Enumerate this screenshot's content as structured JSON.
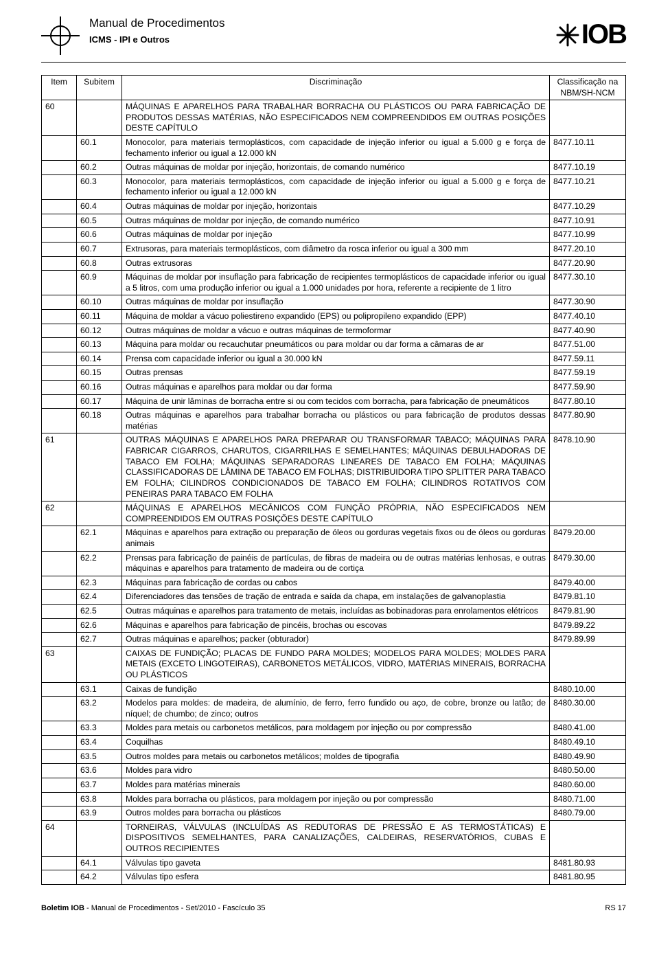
{
  "header": {
    "title": "Manual de Procedimentos",
    "subtitle": "ICMS - IPI e Outros",
    "logo_text": "IOB"
  },
  "table": {
    "head": {
      "item": "Item",
      "subitem": "Subitem",
      "disc": "Discriminação",
      "class": "Classificação na NBM/SH-NCM"
    },
    "rows": [
      {
        "item": "60",
        "sub": "",
        "disc": "MÁQUINAS E APARELHOS PARA TRABALHAR BORRACHA OU PLÁSTICOS OU PARA FABRICAÇÃO DE PRODUTOS DESSAS MATÉRIAS, NÃO ESPECIFICADOS NEM COMPREENDIDOS EM OUTRAS POSIÇÕES DESTE CAPÍTULO",
        "cls": ""
      },
      {
        "item": "",
        "sub": "60.1",
        "disc": "Monocolor, para materiais termoplásticos, com capacidade de injeção inferior ou igual a 5.000 g e força de fechamento inferior ou igual a 12.000 kN",
        "cls": "8477.10.11"
      },
      {
        "item": "",
        "sub": "60.2",
        "disc": "Outras máquinas de moldar por injeção, horizontais, de comando numérico",
        "cls": "8477.10.19"
      },
      {
        "item": "",
        "sub": "60.3",
        "disc": "Monocolor, para materiais termoplásticos, com capacidade de injeção inferior ou igual a 5.000 g e força de fechamento inferior ou igual a 12.000 kN",
        "cls": "8477.10.21"
      },
      {
        "item": "",
        "sub": "60.4",
        "disc": "Outras máquinas de moldar por injeção, horizontais",
        "cls": "8477.10.29"
      },
      {
        "item": "",
        "sub": "60.5",
        "disc": "Outras máquinas de moldar por injeção, de comando numérico",
        "cls": "8477.10.91"
      },
      {
        "item": "",
        "sub": "60.6",
        "disc": "Outras máquinas de moldar por injeção",
        "cls": "8477.10.99"
      },
      {
        "item": "",
        "sub": "60.7",
        "disc": "Extrusoras, para materiais termoplásticos, com diâmetro da rosca inferior ou igual a 300 mm",
        "cls": "8477.20.10"
      },
      {
        "item": "",
        "sub": "60.8",
        "disc": "Outras extrusoras",
        "cls": "8477.20.90"
      },
      {
        "item": "",
        "sub": "60.9",
        "disc": "Máquinas de moldar por insuflação para fabricação de recipientes termoplásticos de capacidade inferior ou igual a 5 litros, com uma produção inferior ou igual a 1.000 unidades por hora, referente a recipiente de 1 litro",
        "cls": "8477.30.10"
      },
      {
        "item": "",
        "sub": "60.10",
        "disc": "Outras máquinas de moldar por insuflação",
        "cls": "8477.30.90"
      },
      {
        "item": "",
        "sub": "60.11",
        "disc": "Máquina de moldar a vácuo poliestireno expandido (EPS) ou polipropileno expandido (EPP)",
        "cls": "8477.40.10"
      },
      {
        "item": "",
        "sub": "60.12",
        "disc": "Outras máquinas de moldar a vácuo e outras máquinas de termoformar",
        "cls": "8477.40.90"
      },
      {
        "item": "",
        "sub": "60.13",
        "disc": "Máquina para moldar ou recauchutar pneumáticos ou para moldar ou dar forma a câmaras de ar",
        "cls": "8477.51.00"
      },
      {
        "item": "",
        "sub": "60.14",
        "disc": "Prensa com capacidade inferior ou igual a 30.000 kN",
        "cls": "8477.59.11"
      },
      {
        "item": "",
        "sub": "60.15",
        "disc": "Outras prensas",
        "cls": "8477.59.19"
      },
      {
        "item": "",
        "sub": "60.16",
        "disc": "Outras máquinas e aparelhos para moldar ou dar forma",
        "cls": "8477.59.90"
      },
      {
        "item": "",
        "sub": "60.17",
        "disc": "Máquina de unir lâminas de borracha entre si ou com tecidos com borracha, para fabricação de pneumáticos",
        "cls": "8477.80.10"
      },
      {
        "item": "",
        "sub": "60.18",
        "disc": "Outras máquinas e aparelhos para trabalhar borracha ou plásticos ou para fabricação de produtos dessas matérias",
        "cls": "8477.80.90"
      },
      {
        "item": "61",
        "sub": "",
        "disc": "OUTRAS MÁQUINAS E APARELHOS PARA PREPARAR OU TRANSFORMAR TABACO; MÁQUINAS PARA FABRICAR CIGARROS, CHARUTOS, CIGARRILHAS E SEMELHANTES; MÁQUINAS DEBULHADORAS DE TABACO EM FOLHA; MÁQUINAS SEPARADORAS LINEARES DE TABACO EM FOLHA; MÁQUINAS CLASSIFICADORAS DE LÂMINA DE TABACO EM FOLHAS; DISTRIBUIDORA TIPO SPLITTER PARA TABACO EM FOLHA; CILINDROS CONDICIONADOS DE TABACO EM FOLHA; CILINDROS ROTATIVOS COM PENEIRAS PARA TABACO EM FOLHA",
        "cls": "8478.10.90"
      },
      {
        "item": "62",
        "sub": "",
        "disc": "MÁQUINAS E APARELHOS MECÂNICOS COM FUNÇÃO PRÓPRIA, NÃO ESPECIFICADOS NEM COMPREENDIDOS EM OUTRAS POSIÇÕES DESTE CAPÍTULO",
        "cls": ""
      },
      {
        "item": "",
        "sub": "62.1",
        "disc": "Máquinas e aparelhos para extração ou preparação de óleos ou gorduras vegetais fixos ou de óleos ou gorduras animais",
        "cls": "8479.20.00"
      },
      {
        "item": "",
        "sub": "62.2",
        "disc": "Prensas para fabricação de painéis de partículas, de fibras de madeira ou de outras matérias lenhosas, e outras máquinas e aparelhos para tratamento de madeira ou de cortiça",
        "cls": "8479.30.00"
      },
      {
        "item": "",
        "sub": "62.3",
        "disc": "Máquinas para fabricação de cordas ou cabos",
        "cls": "8479.40.00"
      },
      {
        "item": "",
        "sub": "62.4",
        "disc": "Diferenciadores das tensões de tração de entrada e saída da chapa, em instalações de galvanoplastia",
        "cls": "8479.81.10"
      },
      {
        "item": "",
        "sub": "62.5",
        "disc": "Outras máquinas e aparelhos para tratamento de metais, incluídas as bobinadoras para enrolamentos elétricos",
        "cls": "8479.81.90"
      },
      {
        "item": "",
        "sub": "62.6",
        "disc": "Máquinas e aparelhos para fabricação de pincéis, brochas ou escovas",
        "cls": "8479.89.22"
      },
      {
        "item": "",
        "sub": "62.7",
        "disc": "Outras máquinas e aparelhos; packer (obturador)",
        "cls": "8479.89.99"
      },
      {
        "item": "63",
        "sub": "",
        "disc": "CAIXAS DE FUNDIÇÃO; PLACAS DE FUNDO PARA MOLDES; MODELOS PARA MOLDES; MOLDES PARA METAIS (EXCETO LINGOTEIRAS), CARBONETOS METÁLICOS, VIDRO, MATÉRIAS MINERAIS, BORRACHA OU PLÁSTICOS",
        "cls": ""
      },
      {
        "item": "",
        "sub": "63.1",
        "disc": "Caixas de fundição",
        "cls": "8480.10.00"
      },
      {
        "item": "",
        "sub": "63.2",
        "disc": "Modelos para moldes: de madeira, de alumínio, de ferro, ferro fundido ou aço, de cobre, bronze ou latão; de níquel; de chumbo; de zinco; outros",
        "cls": "8480.30.00"
      },
      {
        "item": "",
        "sub": "63.3",
        "disc": "Moldes para metais ou carbonetos metálicos, para moldagem por injeção ou por compressão",
        "cls": "8480.41.00"
      },
      {
        "item": "",
        "sub": "63.4",
        "disc": "Coquilhas",
        "cls": "8480.49.10"
      },
      {
        "item": "",
        "sub": "63.5",
        "disc": "Outros moldes para metais ou carbonetos metálicos; moldes de tipografia",
        "cls": "8480.49.90"
      },
      {
        "item": "",
        "sub": "63.6",
        "disc": "Moldes para vidro",
        "cls": "8480.50.00"
      },
      {
        "item": "",
        "sub": "63.7",
        "disc": "Moldes para matérias minerais",
        "cls": "8480.60.00"
      },
      {
        "item": "",
        "sub": "63.8",
        "disc": "Moldes para borracha ou plásticos, para moldagem por injeção ou por compressão",
        "cls": "8480.71.00"
      },
      {
        "item": "",
        "sub": "63.9",
        "disc": "Outros moldes para borracha ou plásticos",
        "cls": "8480.79.00"
      },
      {
        "item": "64",
        "sub": "",
        "disc": "TORNEIRAS, VÁLVULAS (INCLUÍDAS AS REDUTORAS DE PRESSÃO E AS TERMOSTÁTICAS) E DISPOSITIVOS SEMELHANTES, PARA CANALIZAÇÕES, CALDEIRAS, RESERVATÓRIOS, CUBAS E OUTROS RECIPIENTES",
        "cls": ""
      },
      {
        "item": "",
        "sub": "64.1",
        "disc": "Válvulas tipo gaveta",
        "cls": "8481.80.93"
      },
      {
        "item": "",
        "sub": "64.2",
        "disc": "Válvulas tipo esfera",
        "cls": "8481.80.95"
      }
    ]
  },
  "footer": {
    "left_bold": "Boletim IOB",
    "left_rest": " - Manual de Procedimentos - Set/2010 - Fascículo 35",
    "right": "RS   17"
  }
}
